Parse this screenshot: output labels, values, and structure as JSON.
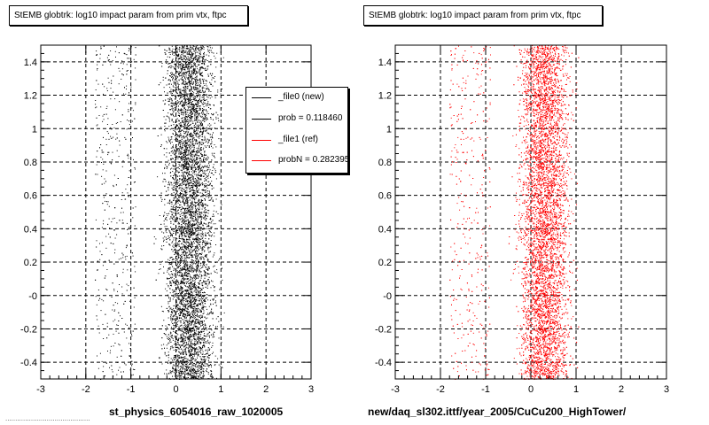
{
  "chart_data": [
    {
      "type": "scatter",
      "title": "StEMB globtrk: log10 impact param from prim vtx, ftpc",
      "xlabel": "st_physics_6054016_raw_1020005",
      "ylabel": "",
      "xlim": [
        -3,
        3
      ],
      "ylim": [
        -0.5,
        1.5
      ],
      "x_ticks": [
        "-3",
        "-2",
        "-1",
        "0",
        "1",
        "2",
        "3"
      ],
      "y_ticks": [
        "-0.4",
        "-0.2",
        "-0",
        "0.2",
        "0.4",
        "0.6",
        "0.8",
        "1",
        "1.2",
        "1.4"
      ],
      "grid": true,
      "marker_color": "#000000",
      "distribution": {
        "x_core": [
          -0.9,
          1.5
        ],
        "x_peak": 0.3,
        "x_sparse": [
          -3,
          3
        ],
        "y_range": [
          -0.5,
          1.5
        ]
      },
      "legend": {
        "placement": "top-right",
        "entries": [
          {
            "label": "_file0 (new)",
            "color": "#000000"
          },
          {
            "label": "prob = 0.118460",
            "color": "#000000"
          },
          {
            "label": "_file1 (ref)",
            "color": "#ff0000"
          },
          {
            "label": "probN = 0.282395",
            "color": "#ff0000"
          }
        ]
      }
    },
    {
      "type": "scatter",
      "title": "StEMB globtrk: log10 impact param from prim vtx, ftpc",
      "xlabel": "new/daq_sl302.ittf/year_2005/CuCu200_HighTower/",
      "ylabel": "",
      "xlim": [
        -3,
        3
      ],
      "ylim": [
        -0.5,
        1.5
      ],
      "x_ticks": [
        "-3",
        "-2",
        "-1",
        "0",
        "1",
        "2",
        "3"
      ],
      "y_ticks": [
        "-0.4",
        "-0.2",
        "-0",
        "0.2",
        "0.4",
        "0.6",
        "0.8",
        "1",
        "1.2",
        "1.4"
      ],
      "grid": true,
      "marker_color": "#ff0000",
      "distribution": {
        "x_core": [
          -0.9,
          1.5
        ],
        "x_peak": 0.3,
        "x_sparse": [
          -3,
          3
        ],
        "y_range": [
          -0.5,
          1.5
        ]
      }
    }
  ],
  "footer_text": "..........................................."
}
